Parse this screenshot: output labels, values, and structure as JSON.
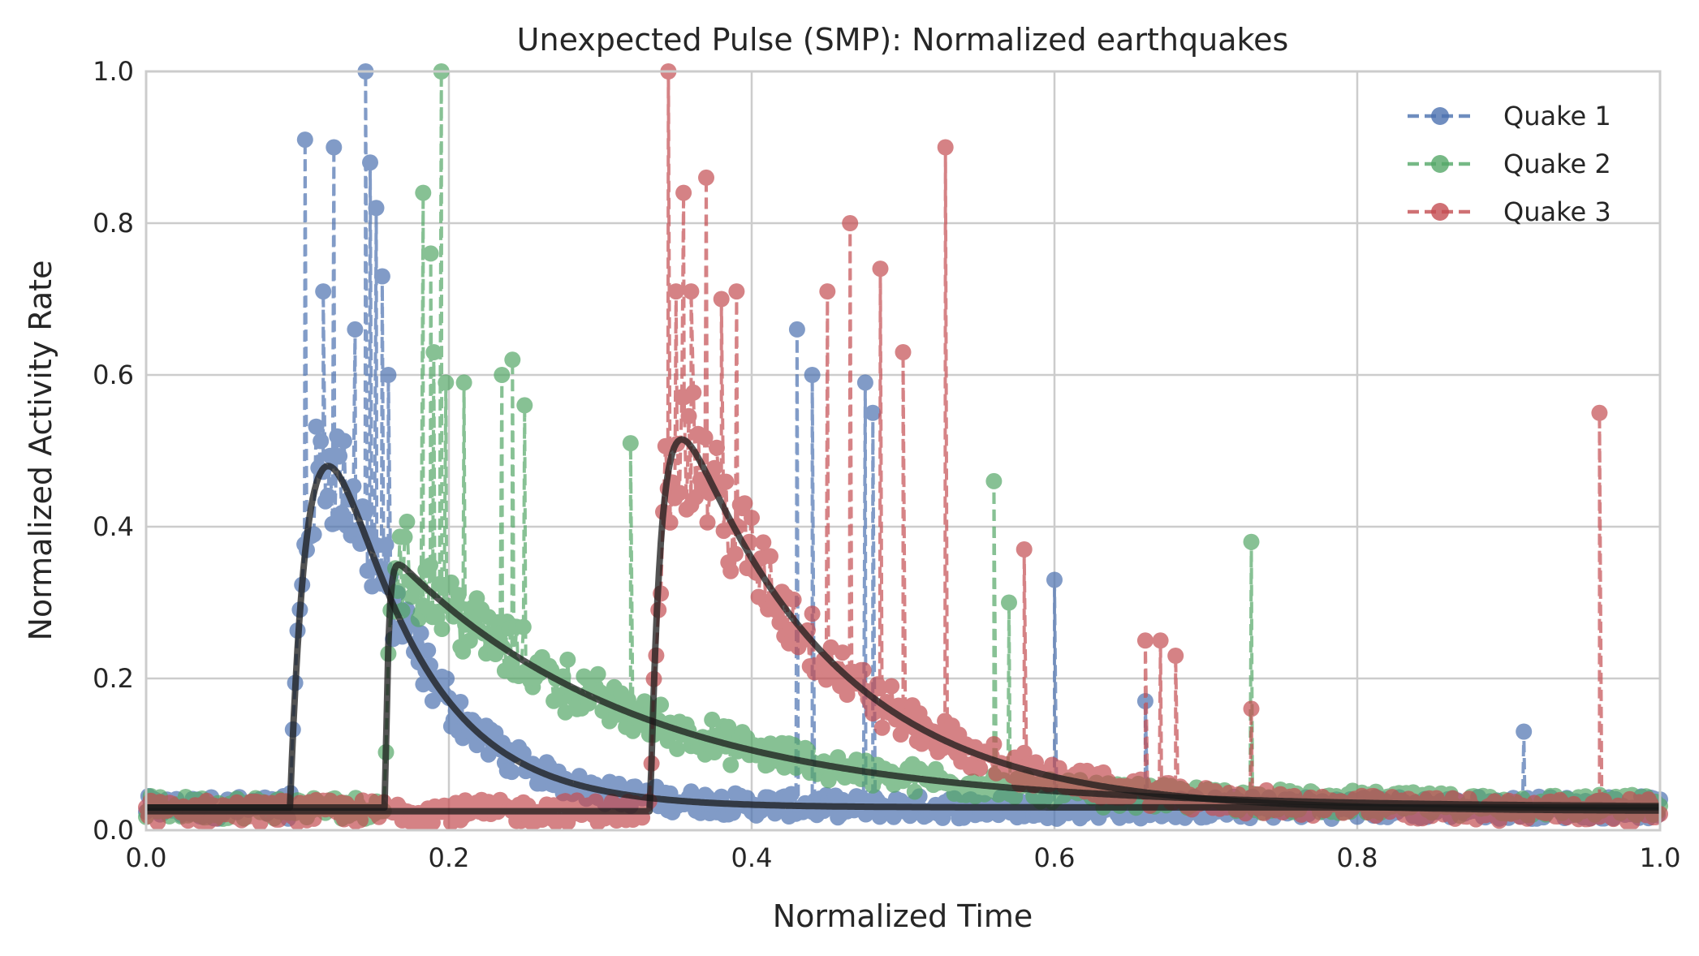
{
  "chart_data": {
    "type": "line",
    "title": "Unexpected Pulse (SMP): Normalized earthquakes",
    "xlabel": "Normalized Time",
    "ylabel": "Normalized Activity Rate",
    "xlim": [
      0.0,
      1.0
    ],
    "ylim": [
      0.0,
      1.0
    ],
    "xticks": [
      0.0,
      0.2,
      0.4,
      0.6,
      0.8,
      1.0
    ],
    "yticks": [
      0.0,
      0.2,
      0.4,
      0.6,
      0.8,
      1.0
    ],
    "xtick_labels": [
      "0.0",
      "0.2",
      "0.4",
      "0.6",
      "0.8",
      "1.0"
    ],
    "ytick_labels": [
      "0.0",
      "0.2",
      "0.4",
      "0.6",
      "0.8",
      "1.0"
    ],
    "grid": true,
    "legend_position": "top-right",
    "series": [
      {
        "name": "Quake 1",
        "color": "#4c72b0",
        "style": "dashed-markers",
        "onset": 0.095,
        "peak_time": 0.134,
        "peak_value": 0.48,
        "baseline": 0.03,
        "spikes": [
          [
            0.105,
            0.91
          ],
          [
            0.117,
            0.71
          ],
          [
            0.124,
            0.9
          ],
          [
            0.138,
            0.66
          ],
          [
            0.145,
            1.0
          ],
          [
            0.148,
            0.88
          ],
          [
            0.152,
            0.82
          ],
          [
            0.156,
            0.73
          ],
          [
            0.16,
            0.6
          ],
          [
            0.43,
            0.66
          ],
          [
            0.44,
            0.6
          ],
          [
            0.475,
            0.59
          ],
          [
            0.48,
            0.55
          ],
          [
            0.6,
            0.33
          ],
          [
            0.66,
            0.17
          ],
          [
            0.91,
            0.13
          ]
        ],
        "fit": {
          "amplitude": 0.45,
          "onset": 0.095,
          "rise": 0.018,
          "decay": 0.055,
          "baseline": 0.03
        }
      },
      {
        "name": "Quake 2",
        "color": "#55a868",
        "style": "dashed-markers",
        "onset": 0.158,
        "peak_time": 0.163,
        "peak_value": 0.35,
        "baseline": 0.03,
        "spikes": [
          [
            0.183,
            0.84
          ],
          [
            0.188,
            0.76
          ],
          [
            0.19,
            0.63
          ],
          [
            0.195,
            1.0
          ],
          [
            0.198,
            0.59
          ],
          [
            0.21,
            0.59
          ],
          [
            0.235,
            0.6
          ],
          [
            0.242,
            0.62
          ],
          [
            0.25,
            0.56
          ],
          [
            0.32,
            0.51
          ],
          [
            0.56,
            0.46
          ],
          [
            0.57,
            0.3
          ],
          [
            0.73,
            0.38
          ]
        ],
        "fit": {
          "amplitude": 0.32,
          "onset": 0.158,
          "rise": 0.002,
          "decay": 0.16,
          "baseline": 0.03
        }
      },
      {
        "name": "Quake 3",
        "color": "#c44e52",
        "style": "dashed-markers",
        "onset": 0.333,
        "peak_time": 0.362,
        "peak_value": 0.5,
        "baseline": 0.025,
        "spikes": [
          [
            0.345,
            1.0
          ],
          [
            0.35,
            0.71
          ],
          [
            0.355,
            0.84
          ],
          [
            0.36,
            0.71
          ],
          [
            0.37,
            0.86
          ],
          [
            0.38,
            0.7
          ],
          [
            0.39,
            0.71
          ],
          [
            0.45,
            0.71
          ],
          [
            0.465,
            0.8
          ],
          [
            0.485,
            0.74
          ],
          [
            0.5,
            0.63
          ],
          [
            0.528,
            0.9
          ],
          [
            0.58,
            0.37
          ],
          [
            0.66,
            0.25
          ],
          [
            0.67,
            0.25
          ],
          [
            0.68,
            0.23
          ],
          [
            0.73,
            0.16
          ],
          [
            0.96,
            0.55
          ]
        ],
        "fit": {
          "amplitude": 0.49,
          "onset": 0.333,
          "rise": 0.008,
          "decay": 0.1,
          "baseline": 0.025
        }
      }
    ],
    "fit_curve_color": "#1a1a1a"
  }
}
